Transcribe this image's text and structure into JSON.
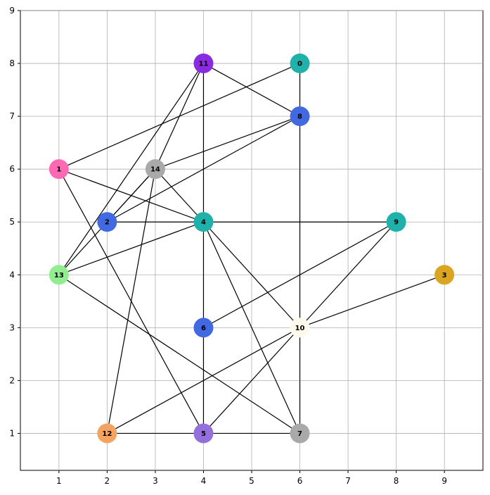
{
  "axes": {
    "x_ticks": [
      "1",
      "2",
      "3",
      "4",
      "5",
      "6",
      "7",
      "8",
      "9"
    ],
    "y_ticks": [
      "1",
      "2",
      "3",
      "4",
      "5",
      "6",
      "7",
      "8",
      "9"
    ],
    "xlim": [
      0.2,
      9.8
    ],
    "ylim": [
      0.3,
      9.0
    ],
    "grid": true
  },
  "nodes": [
    {
      "id": "0",
      "x": 6,
      "y": 8,
      "color": "#20b2aa"
    },
    {
      "id": "1",
      "x": 1,
      "y": 6,
      "color": "#ff69b4"
    },
    {
      "id": "2",
      "x": 2,
      "y": 5,
      "color": "#4169e1"
    },
    {
      "id": "3",
      "x": 9,
      "y": 4,
      "color": "#daa520"
    },
    {
      "id": "4",
      "x": 4,
      "y": 5,
      "color": "#20b2aa"
    },
    {
      "id": "5",
      "x": 4,
      "y": 1,
      "color": "#9370db"
    },
    {
      "id": "6",
      "x": 4,
      "y": 3,
      "color": "#4169e1"
    },
    {
      "id": "7",
      "x": 6,
      "y": 1,
      "color": "#a9a9a9"
    },
    {
      "id": "8",
      "x": 6,
      "y": 7,
      "color": "#4169e1"
    },
    {
      "id": "9",
      "x": 8,
      "y": 5,
      "color": "#20b2aa"
    },
    {
      "id": "10",
      "x": 6,
      "y": 3,
      "color": "#fffaeb"
    },
    {
      "id": "11",
      "x": 4,
      "y": 8,
      "color": "#8a2be2"
    },
    {
      "id": "12",
      "x": 2,
      "y": 1,
      "color": "#f4a460"
    },
    {
      "id": "13",
      "x": 1,
      "y": 4,
      "color": "#90ee90"
    },
    {
      "id": "14",
      "x": 3,
      "y": 6,
      "color": "#a9a9a9"
    }
  ],
  "edges": [
    [
      "0",
      "8"
    ],
    [
      "0",
      "1"
    ],
    [
      "11",
      "8"
    ],
    [
      "11",
      "4"
    ],
    [
      "11",
      "14"
    ],
    [
      "11",
      "13"
    ],
    [
      "8",
      "14"
    ],
    [
      "8",
      "2"
    ],
    [
      "8",
      "10"
    ],
    [
      "1",
      "4"
    ],
    [
      "1",
      "5"
    ],
    [
      "14",
      "2"
    ],
    [
      "14",
      "4"
    ],
    [
      "14",
      "13"
    ],
    [
      "14",
      "12"
    ],
    [
      "2",
      "4"
    ],
    [
      "4",
      "9"
    ],
    [
      "4",
      "13"
    ],
    [
      "4",
      "6"
    ],
    [
      "4",
      "10"
    ],
    [
      "4",
      "7"
    ],
    [
      "9",
      "6"
    ],
    [
      "9",
      "10"
    ],
    [
      "3",
      "10"
    ],
    [
      "13",
      "7"
    ],
    [
      "6",
      "5"
    ],
    [
      "10",
      "12"
    ],
    [
      "10",
      "5"
    ],
    [
      "10",
      "7"
    ],
    [
      "12",
      "5"
    ],
    [
      "5",
      "7"
    ]
  ]
}
